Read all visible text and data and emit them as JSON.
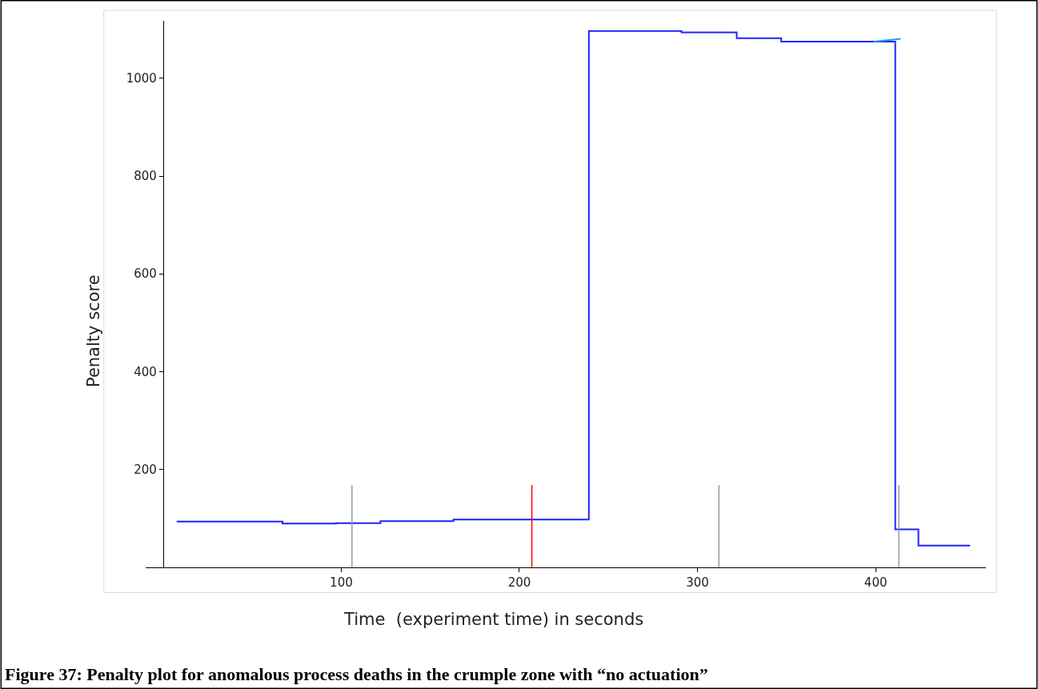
{
  "chart_data": {
    "type": "step",
    "xlabel": "Time  (experiment time) in seconds",
    "ylabel": "Penalty score",
    "annotations": [
      "Figure 37: Penalty plot for anomalous process deaths in the crumple zone with “no actuation”"
    ],
    "series": [
      {
        "color": "#2020ff",
        "x": [
          7.6,
          67,
          97,
          122,
          163,
          239,
          291,
          322,
          347,
          411,
          424,
          453
        ],
        "values": [
          93,
          89,
          90,
          94,
          97,
          1097,
          1094,
          1082,
          1075,
          77,
          44,
          44
        ]
      },
      {
        "type": "line",
        "color": "#1ea0dc",
        "x": [
          399,
          414
        ],
        "values": [
          1075,
          1081
        ]
      }
    ],
    "ref_lines": [
      {
        "axis": "x",
        "value": 106,
        "color": "#999999"
      },
      {
        "axis": "x",
        "value": 207,
        "color": "#ff0000"
      },
      {
        "axis": "x",
        "value": 312,
        "color": "#999999"
      },
      {
        "axis": "x",
        "value": 413,
        "color": "#999999"
      }
    ],
    "xlim": [
      -10,
      462
    ],
    "ylim": [
      0,
      1118
    ],
    "xticks": [
      100,
      200,
      300,
      400
    ],
    "yticks": [
      200,
      400,
      600,
      800,
      1000
    ]
  }
}
